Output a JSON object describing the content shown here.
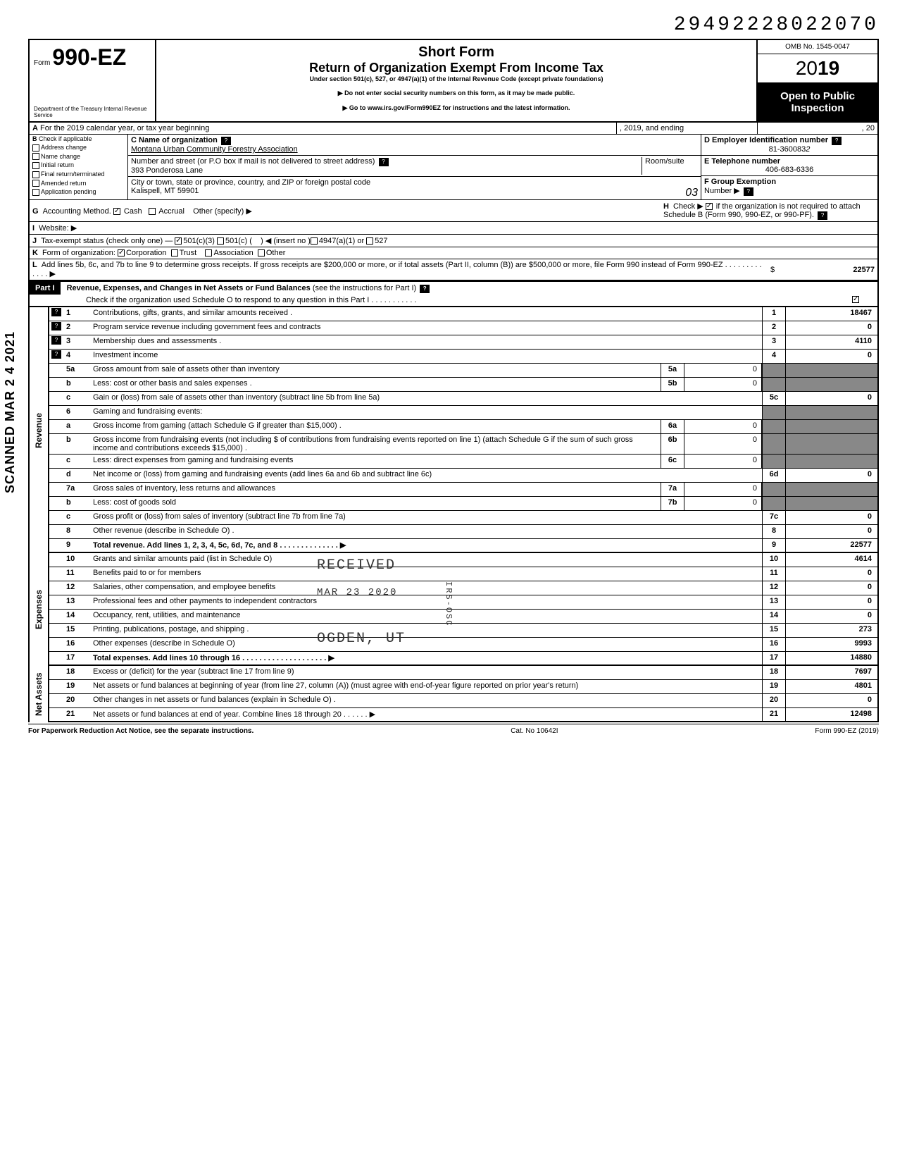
{
  "top_number": "29492228022070",
  "form": {
    "prefix": "Form",
    "number": "990-EZ",
    "dept": "Department of the Treasury\nInternal Revenue Service"
  },
  "header": {
    "short_form": "Short Form",
    "title": "Return of Organization Exempt From Income Tax",
    "subtitle": "Under section 501(c), 527, or 4947(a)(1) of the Internal Revenue Code (except private foundations)",
    "warn": "▶ Do not enter social security numbers on this form, as it may be made public.",
    "goto": "▶ Go to www.irs.gov/Form990EZ for instructions and the latest information.",
    "omb": "OMB No. 1545-0047",
    "year_prefix": "20",
    "year_bold": "19",
    "open": "Open to Public Inspection"
  },
  "row_a": {
    "label": "A",
    "text": "For the 2019 calendar year, or tax year beginning",
    "mid": ", 2019, and ending",
    "end": ", 20"
  },
  "col_b": {
    "label": "B",
    "check_label": "Check if applicable",
    "items": [
      "Address change",
      "Name change",
      "Initial return",
      "Final return/terminated",
      "Amended return",
      "Application pending"
    ]
  },
  "col_c": {
    "name_label": "C  Name of organization",
    "name": "Montana Urban Community Forestry Association",
    "addr_label": "Number and street (or P.O  box if mail is not delivered to street address)",
    "room": "Room/suite",
    "addr": "393 Ponderosa Lane",
    "city_label": "City or town, state or province, country, and ZIP or foreign postal code",
    "city": "Kalispell, MT 59901",
    "city_hand": "03"
  },
  "col_d": {
    "label": "D Employer Identification number",
    "value": "81-360083",
    "hand": "2"
  },
  "col_e": {
    "label": "E  Telephone number",
    "value": "406-683-6336"
  },
  "col_f": {
    "label": "F  Group Exemption",
    "sub": "Number ▶"
  },
  "row_g": {
    "label": "G",
    "text": "Accounting Method.",
    "cash": "Cash",
    "accrual": "Accrual",
    "other": "Other (specify) ▶"
  },
  "row_h": {
    "label": "H",
    "text": "Check ▶",
    "rest": "if the organization is not required to attach Schedule B (Form 990, 990-EZ, or 990-PF)."
  },
  "row_i": {
    "label": "I",
    "text": "Website: ▶"
  },
  "row_j": {
    "label": "J",
    "text": "Tax-exempt status (check only one) —",
    "o1": "501(c)(3)",
    "o2": "501(c) (",
    "o3": ") ◀ (insert no )",
    "o4": "4947(a)(1) or",
    "o5": "527"
  },
  "row_k": {
    "label": "K",
    "text": "Form of organization:",
    "o1": "Corporation",
    "o2": "Trust",
    "o3": "Association",
    "o4": "Other"
  },
  "row_l": {
    "label": "L",
    "text": "Add lines 5b, 6c, and 7b to line 9 to determine gross receipts. If gross receipts are $200,000 or more, or if total assets (Part II, column (B)) are $500,000 or more, file Form 990 instead of Form 990-EZ .  .  .  .  .  .  .  .  .  .  .  .  .   ▶",
    "dollar": "$",
    "value": "22577"
  },
  "part1": {
    "label": "Part I",
    "title": "Revenue, Expenses, and Changes in Net Assets or Fund Balances",
    "title_suffix": " (see the instructions for Part I)",
    "check_line": "Check if the organization used Schedule O to respond to any question in this Part I .  .  .  .  .  .  .  .  .  .  ."
  },
  "sections": {
    "revenue": "Revenue",
    "expenses": "Expenses",
    "netassets": "Net Assets"
  },
  "lines": [
    {
      "n": "1",
      "desc": "Contributions, gifts, grants, and similar amounts received .",
      "rn": "1",
      "rv": "18467",
      "help": true
    },
    {
      "n": "2",
      "desc": "Program service revenue including government fees and contracts",
      "rn": "2",
      "rv": "0",
      "help": true
    },
    {
      "n": "3",
      "desc": "Membership dues and assessments .",
      "rn": "3",
      "rv": "4110",
      "help": true
    },
    {
      "n": "4",
      "desc": "Investment income",
      "rn": "4",
      "rv": "0",
      "help": true
    },
    {
      "n": "5a",
      "desc": "Gross amount from sale of assets other than inventory",
      "mn": "5a",
      "mv": "0"
    },
    {
      "n": "b",
      "desc": "Less: cost or other basis and sales expenses .",
      "mn": "5b",
      "mv": "0"
    },
    {
      "n": "c",
      "desc": "Gain or (loss) from sale of assets other than inventory (subtract line 5b from line 5a)",
      "rn": "5c",
      "rv": "0"
    },
    {
      "n": "6",
      "desc": "Gaming and fundraising events:"
    },
    {
      "n": "a",
      "desc": "Gross income from gaming (attach Schedule G if greater than $15,000) .",
      "mn": "6a",
      "mv": "0"
    },
    {
      "n": "b",
      "desc": "Gross income from fundraising events (not including  $                      of contributions from fundraising events reported on line 1) (attach Schedule G if the sum of such gross income and contributions exceeds $15,000) .",
      "mn": "6b",
      "mv": "0"
    },
    {
      "n": "c",
      "desc": "Less: direct expenses from gaming and fundraising events",
      "mn": "6c",
      "mv": "0"
    },
    {
      "n": "d",
      "desc": "Net income or (loss) from gaming and fundraising events (add lines 6a and 6b and subtract line 6c)",
      "rn": "6d",
      "rv": "0"
    },
    {
      "n": "7a",
      "desc": "Gross sales of inventory, less returns and allowances",
      "mn": "7a",
      "mv": "0"
    },
    {
      "n": "b",
      "desc": "Less: cost of goods sold",
      "mn": "7b",
      "mv": "0"
    },
    {
      "n": "c",
      "desc": "Gross profit or (loss) from sales of inventory (subtract line 7b from line 7a)",
      "rn": "7c",
      "rv": "0"
    },
    {
      "n": "8",
      "desc": "Other revenue (describe in Schedule O) .",
      "rn": "8",
      "rv": "0"
    },
    {
      "n": "9",
      "desc": "Total revenue. Add lines 1, 2, 3, 4, 5c, 6d, 7c, and 8  .  .  .  .  .  .  .  .  .  .  .  .  .  .   ▶",
      "rn": "9",
      "rv": "22577",
      "bold": true
    }
  ],
  "exp_lines": [
    {
      "n": "10",
      "desc": "Grants and similar amounts paid (list in Schedule O)",
      "rn": "10",
      "rv": "4614"
    },
    {
      "n": "11",
      "desc": "Benefits paid to or for members",
      "rn": "11",
      "rv": "0"
    },
    {
      "n": "12",
      "desc": "Salaries, other compensation, and employee benefits",
      "rn": "12",
      "rv": "0"
    },
    {
      "n": "13",
      "desc": "Professional fees and other payments to independent contractors",
      "rn": "13",
      "rv": "0"
    },
    {
      "n": "14",
      "desc": "Occupancy, rent, utilities, and maintenance",
      "rn": "14",
      "rv": "0"
    },
    {
      "n": "15",
      "desc": "Printing, publications, postage, and shipping .",
      "rn": "15",
      "rv": "273"
    },
    {
      "n": "16",
      "desc": "Other expenses (describe in Schedule O)",
      "rn": "16",
      "rv": "9993"
    },
    {
      "n": "17",
      "desc": "Total expenses. Add lines 10 through 16 .  .  .  .  .  .  .  .  .  .  .  .  .  .  .  .  .  .  .  .   ▶",
      "rn": "17",
      "rv": "14880",
      "bold": true
    }
  ],
  "na_lines": [
    {
      "n": "18",
      "desc": "Excess or (deficit) for the year (subtract line 17 from line 9)",
      "rn": "18",
      "rv": "7697"
    },
    {
      "n": "19",
      "desc": "Net assets or fund balances at beginning of year (from line 27, column (A)) (must agree with end-of-year figure reported on prior year's return)",
      "rn": "19",
      "rv": "4801"
    },
    {
      "n": "20",
      "desc": "Other changes in net assets or fund balances (explain in Schedule O) .",
      "rn": "20",
      "rv": "0"
    },
    {
      "n": "21",
      "desc": "Net assets or fund balances at end of year. Combine lines 18 through 20  .  .  .  .  .  .   ▶",
      "rn": "21",
      "rv": "12498"
    }
  ],
  "stamps": {
    "received": "RECEIVED",
    "date": "MAR 23 2020",
    "ogden": "OGDEN, UT",
    "irs": "IRS-OSC"
  },
  "footer": {
    "left": "For Paperwork Reduction Act Notice, see the separate instructions.",
    "mid": "Cat. No  10642I",
    "right": "Form 990-EZ  (2019)"
  },
  "scanned": "SCANNED MAR 2 4 2021"
}
